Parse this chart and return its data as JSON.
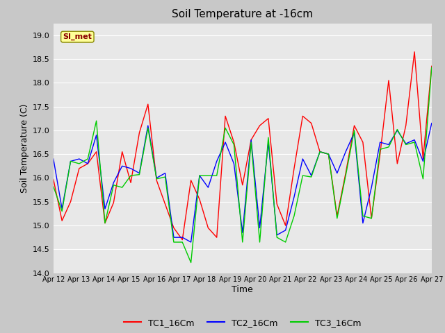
{
  "title": "Soil Temperature at -16cm",
  "xlabel": "Time",
  "ylabel": "Soil Temperature (C)",
  "ylim": [
    14.0,
    19.25
  ],
  "yticks": [
    14.0,
    14.5,
    15.0,
    15.5,
    16.0,
    16.5,
    17.0,
    17.5,
    18.0,
    18.5,
    19.0
  ],
  "xtick_labels": [
    "Apr 12",
    "Apr 13",
    "Apr 14",
    "Apr 15",
    "Apr 16",
    "Apr 17",
    "Apr 18",
    "Apr 19",
    "Apr 20",
    "Apr 21",
    "Apr 22",
    "Apr 23",
    "Apr 24",
    "Apr 25",
    "Apr 26",
    "Apr 27"
  ],
  "watermark_text": "SI_met",
  "watermark_color": "#8B0000",
  "watermark_bg": "#FFFF99",
  "fig_bg_color": "#C8C8C8",
  "plot_bg_color": "#E8E8E8",
  "grid_color": "#FFFFFF",
  "tc1_color": "#FF0000",
  "tc2_color": "#0000FF",
  "tc3_color": "#00CC00",
  "tc1_label": "TC1_16Cm",
  "tc2_label": "TC2_16Cm",
  "tc3_label": "TC3_16Cm",
  "tc1_y": [
    15.97,
    15.1,
    15.5,
    16.2,
    16.3,
    16.55,
    15.05,
    15.48,
    16.55,
    15.9,
    16.95,
    17.55,
    15.95,
    15.45,
    14.95,
    14.7,
    15.95,
    15.55,
    14.95,
    14.75,
    17.3,
    16.75,
    15.85,
    16.8,
    17.1,
    17.25,
    15.45,
    15.0,
    16.2,
    17.3,
    17.15,
    16.55,
    16.5,
    15.2,
    16.1,
    17.1,
    16.75,
    15.15,
    16.5,
    18.05,
    16.3,
    17.1,
    18.65,
    16.4,
    18.35
  ],
  "tc2_y": [
    16.4,
    15.35,
    16.35,
    16.4,
    16.3,
    16.9,
    15.35,
    15.9,
    16.25,
    16.2,
    16.1,
    17.1,
    16.0,
    16.1,
    14.75,
    14.75,
    14.65,
    16.05,
    15.8,
    16.35,
    16.75,
    16.3,
    14.85,
    16.8,
    14.95,
    16.75,
    14.8,
    14.9,
    15.6,
    16.4,
    16.05,
    16.55,
    16.5,
    16.1,
    16.55,
    16.95,
    15.05,
    15.8,
    16.75,
    16.7,
    17.0,
    16.72,
    16.8,
    16.35,
    17.15
  ],
  "tc3_y": [
    15.82,
    15.3,
    16.35,
    16.3,
    16.4,
    17.2,
    15.05,
    15.85,
    15.8,
    16.05,
    16.07,
    17.05,
    15.98,
    16.02,
    14.65,
    14.65,
    14.22,
    16.05,
    16.05,
    16.05,
    17.05,
    16.7,
    14.65,
    16.75,
    14.65,
    16.85,
    14.75,
    14.65,
    15.2,
    16.05,
    16.02,
    16.55,
    16.5,
    15.15,
    16.05,
    17.0,
    15.2,
    15.15,
    16.6,
    16.65,
    17.02,
    16.7,
    16.75,
    15.98,
    18.32
  ]
}
